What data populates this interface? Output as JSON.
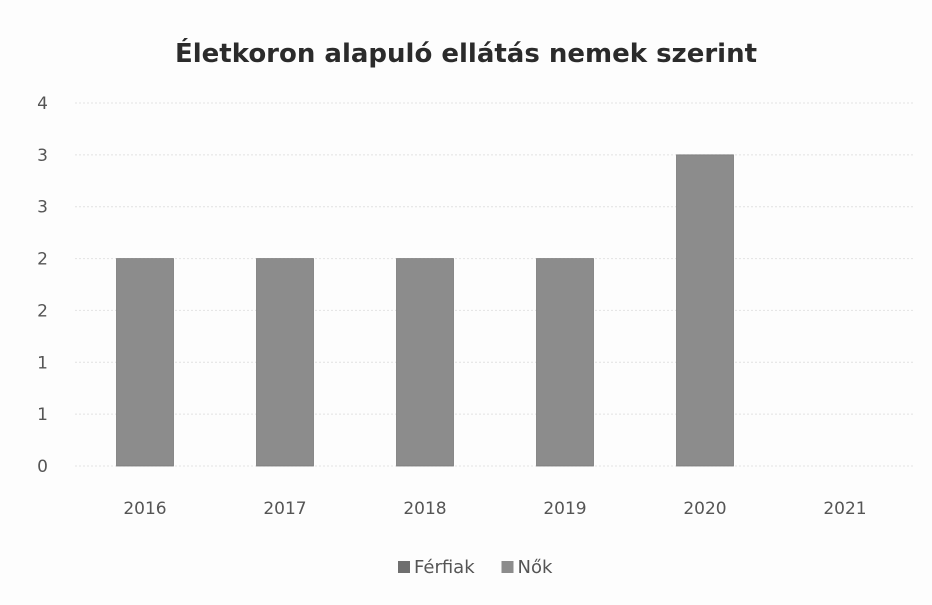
{
  "chart_data": {
    "type": "bar",
    "stacked": true,
    "title": "Életkoron alapuló ellátás nemek szerint",
    "xlabel": "",
    "ylabel": "",
    "categories": [
      "2016",
      "2017",
      "2018",
      "2019",
      "2020",
      "2021"
    ],
    "y_tick_labels": [
      "0",
      "1",
      "1",
      "2",
      "2",
      "3",
      "3",
      "4"
    ],
    "ylim": [
      0,
      3.5
    ],
    "grid": true,
    "legend_position": "bottom",
    "series": [
      {
        "name": "Férfiak",
        "values": [
          0,
          0,
          0,
          0,
          0,
          0
        ],
        "color": "#6f6f6f"
      },
      {
        "name": "Nők",
        "values": [
          2,
          2,
          2,
          2,
          3,
          0
        ],
        "color": "#8c8c8c"
      }
    ]
  }
}
